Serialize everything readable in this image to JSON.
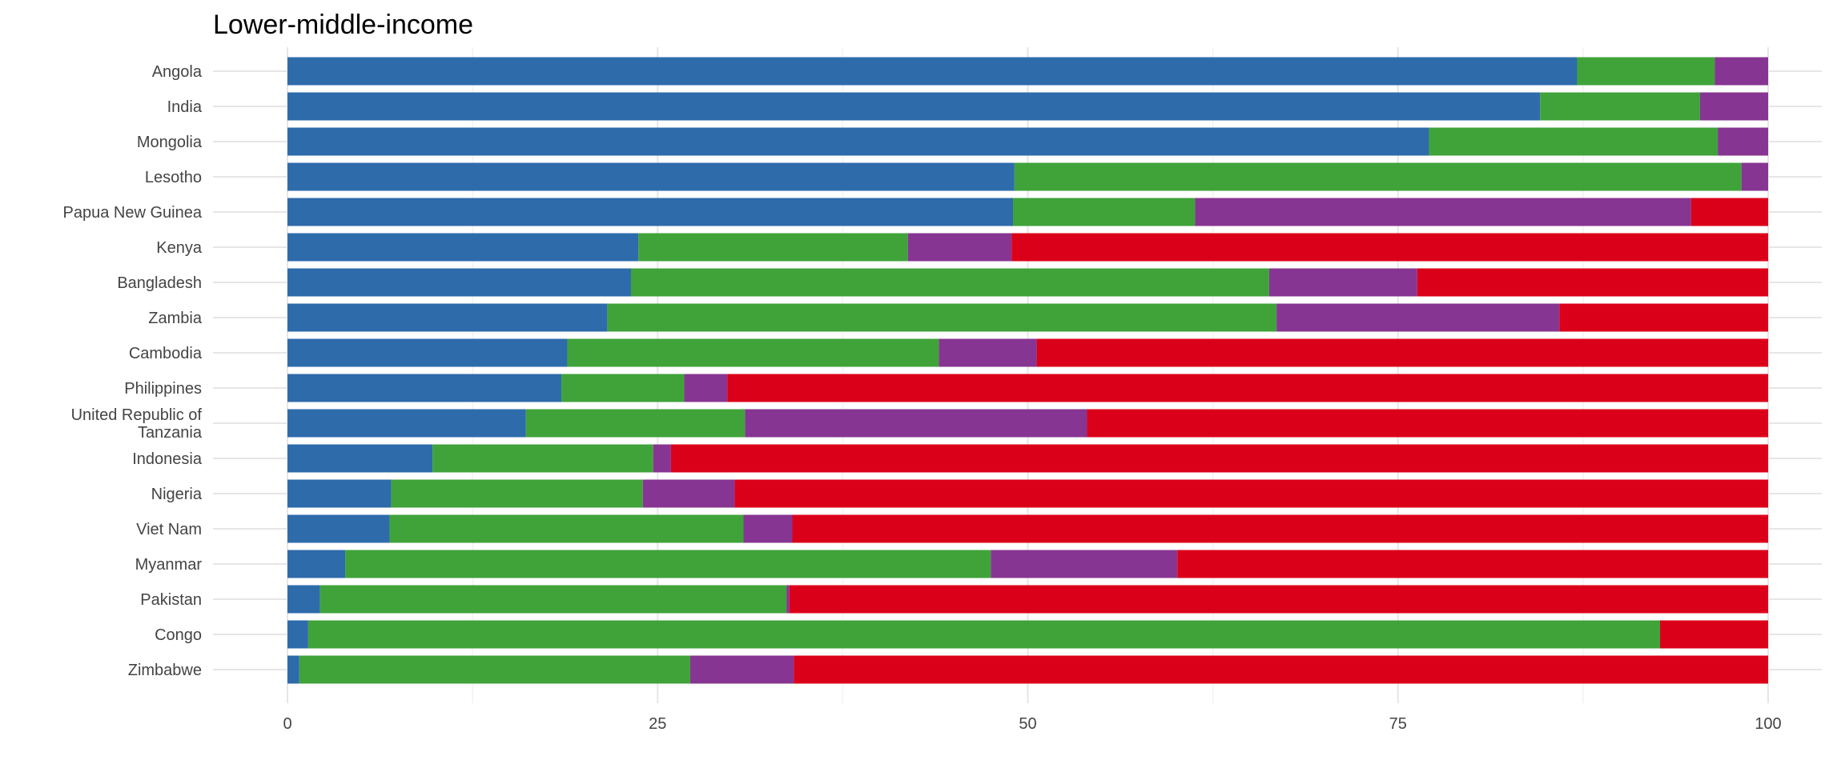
{
  "chart_data": {
    "type": "bar",
    "orientation": "horizontal",
    "stacked": true,
    "title": "Lower-middle-income",
    "xlabel": "",
    "ylabel": "",
    "xlim": [
      0,
      100
    ],
    "xticks": [
      "0",
      "25",
      "50",
      "75",
      "100"
    ],
    "grid": true,
    "legend": "none",
    "categories": [
      "Angola",
      "India",
      "Mongolia",
      "Lesotho",
      "Papua New Guinea",
      "Kenya",
      "Bangladesh",
      "Zambia",
      "Cambodia",
      "Philippines",
      "United Republic of Tanzania",
      "Indonesia",
      "Nigeria",
      "Viet Nam",
      "Myanmar",
      "Pakistan",
      "Congo",
      "Zimbabwe"
    ],
    "category_labels": [
      "Angola",
      "India",
      "Mongolia",
      "Lesotho",
      "Papua New Guinea",
      "Kenya",
      "Bangladesh",
      "Zambia",
      "Cambodia",
      "Philippines",
      "United Republic of\nTanzania",
      "Indonesia",
      "Nigeria",
      "Viet Nam",
      "Myanmar",
      "Pakistan",
      "Congo",
      "Zimbabwe"
    ],
    "series": [
      {
        "color": "#2E6BAB",
        "values": [
          87.1,
          84.6,
          77.1,
          49.1,
          49.0,
          23.7,
          23.2,
          21.6,
          18.9,
          18.5,
          16.1,
          9.8,
          7.0,
          6.9,
          3.9,
          2.2,
          1.4,
          0.8
        ]
      },
      {
        "color": "#3FA33A",
        "values": [
          9.3,
          10.8,
          19.5,
          49.1,
          12.3,
          18.2,
          43.1,
          45.2,
          25.1,
          8.3,
          14.8,
          14.9,
          17.0,
          23.9,
          43.6,
          31.5,
          91.3,
          26.4
        ]
      },
      {
        "color": "#873592",
        "values": [
          3.6,
          4.6,
          3.4,
          1.8,
          33.5,
          7.0,
          10.0,
          19.1,
          6.6,
          2.9,
          23.1,
          1.2,
          6.2,
          3.3,
          12.6,
          0.2,
          0.0,
          7.0
        ]
      },
      {
        "color": "#DB0019",
        "values": [
          0.0,
          0.0,
          0.0,
          0.0,
          5.2,
          51.1,
          23.7,
          14.1,
          49.4,
          70.3,
          46.0,
          74.1,
          69.8,
          65.9,
          39.9,
          66.1,
          7.3,
          65.8
        ]
      }
    ]
  }
}
